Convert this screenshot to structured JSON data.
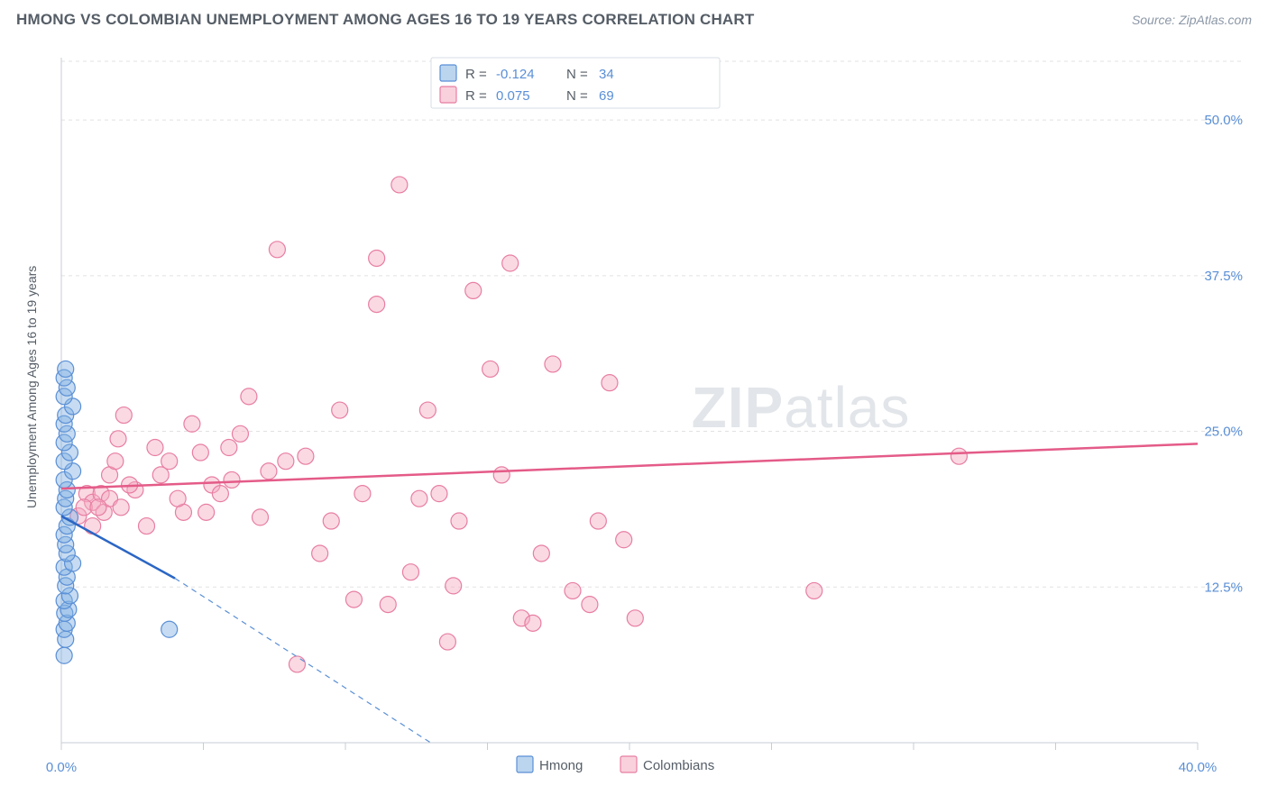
{
  "title": "HMONG VS COLOMBIAN UNEMPLOYMENT AMONG AGES 16 TO 19 YEARS CORRELATION CHART",
  "source": "Source: ZipAtlas.com",
  "watermark_a": "ZIP",
  "watermark_b": "atlas",
  "y_axis_label": "Unemployment Among Ages 16 to 19 years",
  "chart": {
    "type": "scatter",
    "xlim": [
      0,
      40
    ],
    "ylim": [
      0,
      55
    ],
    "x_ticks": [
      0,
      5,
      10,
      15,
      20,
      25,
      30,
      35,
      40
    ],
    "x_tick_labels": {
      "0": "0.0%",
      "40": "40.0%"
    },
    "y_grid": [
      12.5,
      25.0,
      37.5,
      50.0
    ],
    "y_tick_labels": [
      "12.5%",
      "25.0%",
      "37.5%",
      "50.0%"
    ],
    "marker_radius": 9,
    "background_color": "#ffffff",
    "grid_color": "#e2e2e2",
    "axis_color": "#c7cdd4",
    "series": [
      {
        "name": "Hmong",
        "color_fill": "rgba(131,178,226,0.45)",
        "color_stroke": "#5a8fd6",
        "trend_color": "#2b66c4",
        "r": "-0.124",
        "n": "34",
        "trend": {
          "x1": 0.0,
          "y1": 18.2,
          "x2": 4.0,
          "y2": 13.2,
          "dash_to_x": 13.0,
          "dash_to_y": 0.0
        },
        "points": [
          [
            0.1,
            7.0
          ],
          [
            0.15,
            8.3
          ],
          [
            0.1,
            9.1
          ],
          [
            0.2,
            9.6
          ],
          [
            0.12,
            10.4
          ],
          [
            0.25,
            10.7
          ],
          [
            0.1,
            11.4
          ],
          [
            0.3,
            11.8
          ],
          [
            0.15,
            12.6
          ],
          [
            0.2,
            13.3
          ],
          [
            0.1,
            14.1
          ],
          [
            0.4,
            14.4
          ],
          [
            0.2,
            15.2
          ],
          [
            0.15,
            15.9
          ],
          [
            0.1,
            16.7
          ],
          [
            0.2,
            17.4
          ],
          [
            0.3,
            18.1
          ],
          [
            0.1,
            18.9
          ],
          [
            0.15,
            19.6
          ],
          [
            0.2,
            20.3
          ],
          [
            0.1,
            21.1
          ],
          [
            0.4,
            21.8
          ],
          [
            0.1,
            22.6
          ],
          [
            0.3,
            23.3
          ],
          [
            0.1,
            24.1
          ],
          [
            0.2,
            24.8
          ],
          [
            0.1,
            25.6
          ],
          [
            0.15,
            26.3
          ],
          [
            0.4,
            27.0
          ],
          [
            0.1,
            27.8
          ],
          [
            0.2,
            28.5
          ],
          [
            0.1,
            29.3
          ],
          [
            0.15,
            30.0
          ],
          [
            3.8,
            9.1
          ]
        ]
      },
      {
        "name": "Colombians",
        "color_fill": "rgba(244,171,192,0.45)",
        "color_stroke": "#e87ea2",
        "trend_color": "#e45b88",
        "r": "0.075",
        "n": "69",
        "trend": {
          "x1": 0.0,
          "y1": 20.4,
          "x2": 40.0,
          "y2": 24.0
        },
        "points": [
          [
            0.6,
            18.2
          ],
          [
            0.9,
            20.0
          ],
          [
            1.1,
            17.4
          ],
          [
            1.1,
            19.3
          ],
          [
            1.4,
            20.0
          ],
          [
            1.5,
            18.5
          ],
          [
            1.7,
            19.6
          ],
          [
            1.7,
            21.5
          ],
          [
            1.9,
            22.6
          ],
          [
            2.0,
            24.4
          ],
          [
            2.2,
            26.3
          ],
          [
            2.6,
            20.3
          ],
          [
            3.0,
            17.4
          ],
          [
            3.3,
            23.7
          ],
          [
            3.8,
            22.6
          ],
          [
            4.3,
            18.5
          ],
          [
            4.6,
            25.6
          ],
          [
            5.3,
            20.7
          ],
          [
            5.6,
            20.0
          ],
          [
            5.9,
            23.7
          ],
          [
            6.3,
            24.8
          ],
          [
            6.6,
            27.8
          ],
          [
            7.0,
            18.1
          ],
          [
            7.3,
            21.8
          ],
          [
            7.6,
            39.6
          ],
          [
            8.3,
            6.3
          ],
          [
            8.6,
            23.0
          ],
          [
            9.1,
            15.2
          ],
          [
            9.5,
            17.8
          ],
          [
            9.8,
            26.7
          ],
          [
            10.3,
            11.5
          ],
          [
            10.6,
            20.0
          ],
          [
            11.1,
            35.2
          ],
          [
            11.1,
            38.9
          ],
          [
            11.5,
            11.1
          ],
          [
            11.9,
            44.8
          ],
          [
            12.3,
            13.7
          ],
          [
            12.6,
            19.6
          ],
          [
            12.9,
            26.7
          ],
          [
            13.3,
            20.0
          ],
          [
            13.6,
            8.1
          ],
          [
            13.8,
            12.6
          ],
          [
            14.0,
            17.8
          ],
          [
            14.5,
            36.3
          ],
          [
            15.1,
            30.0
          ],
          [
            15.5,
            21.5
          ],
          [
            15.8,
            38.5
          ],
          [
            16.2,
            10.0
          ],
          [
            16.6,
            9.6
          ],
          [
            16.9,
            15.2
          ],
          [
            17.3,
            30.4
          ],
          [
            18.0,
            12.2
          ],
          [
            18.6,
            11.1
          ],
          [
            18.9,
            17.8
          ],
          [
            19.3,
            28.9
          ],
          [
            19.8,
            16.3
          ],
          [
            20.2,
            10.0
          ],
          [
            26.5,
            12.2
          ],
          [
            31.6,
            23.0
          ],
          [
            0.8,
            18.9
          ],
          [
            1.3,
            18.9
          ],
          [
            2.1,
            18.9
          ],
          [
            2.4,
            20.7
          ],
          [
            3.5,
            21.5
          ],
          [
            4.1,
            19.6
          ],
          [
            4.9,
            23.3
          ],
          [
            5.1,
            18.5
          ],
          [
            6.0,
            21.1
          ],
          [
            7.9,
            22.6
          ]
        ]
      }
    ],
    "legend_top": {
      "r_label": "R =",
      "n_label": "N ="
    },
    "legend_bottom": [
      {
        "label": "Hmong",
        "swatch": "blue"
      },
      {
        "label": "Colombians",
        "swatch": "pink"
      }
    ]
  }
}
